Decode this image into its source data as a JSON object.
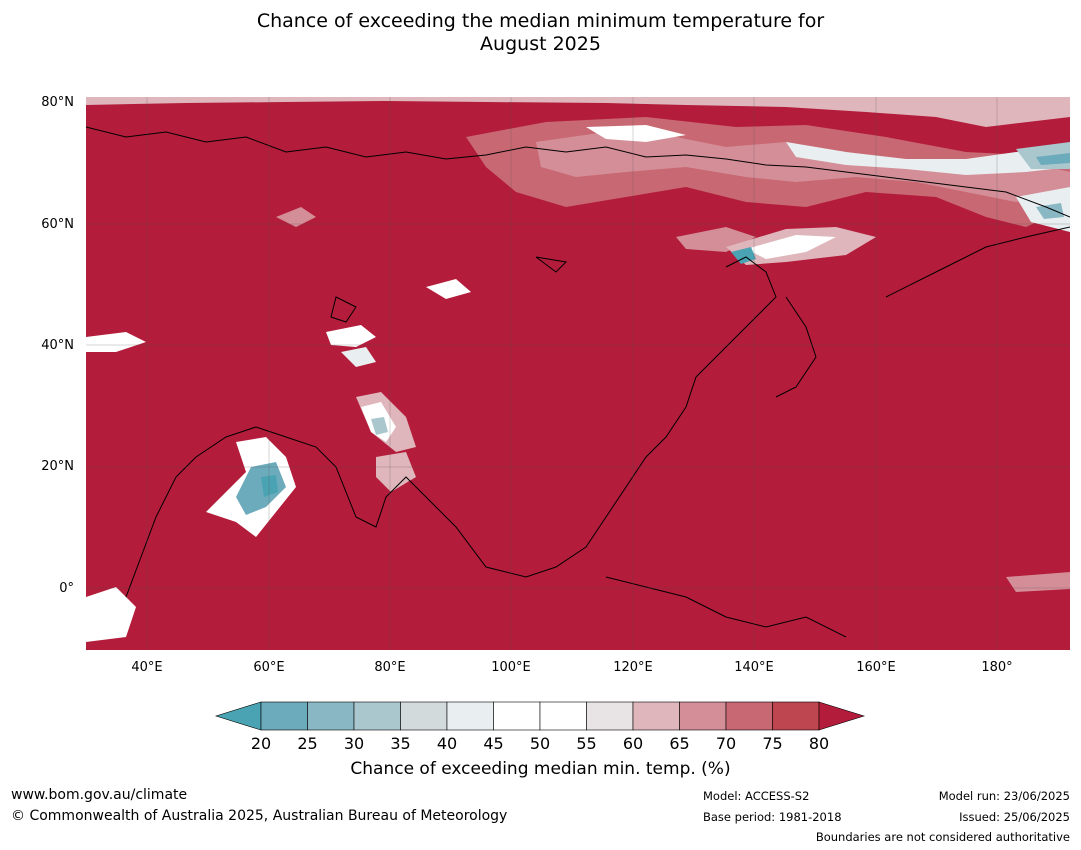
{
  "title_line1": "Chance of exceeding the median minimum temperature for",
  "title_line2": "August 2025",
  "map": {
    "lat_labels": [
      "80°N",
      "60°N",
      "40°N",
      "20°N",
      "0°"
    ],
    "lon_labels": [
      "40°E",
      "60°E",
      "80°E",
      "100°E",
      "120°E",
      "140°E",
      "160°E",
      "180°"
    ],
    "dominant_color": "#b31c3a"
  },
  "colorbar": {
    "ticks": [
      "20",
      "25",
      "30",
      "35",
      "40",
      "45",
      "50",
      "55",
      "60",
      "65",
      "70",
      "75",
      "80"
    ],
    "colors": [
      "#6cabbb",
      "#89b8c4",
      "#aac7ce",
      "#d3dadc",
      "#e9eff1",
      "#ffffff",
      "#ffffff",
      "#e8e3e5",
      "#dfb6bc",
      "#d48e98",
      "#c86872",
      "#bd4651"
    ],
    "low_color": "#4aa3b3",
    "high_color": "#b31c3a",
    "title": "Chance of exceeding median min. temp. (%)"
  },
  "footer": {
    "website": "www.bom.gov.au/climate",
    "copyright": "© Commonwealth of Australia 2025, Australian Bureau of Meteorology",
    "model": "Model: ACCESS-S2",
    "base_period": "Base period: 1981-2018",
    "model_run": "Model run: 23/06/2025",
    "issued": "Issued: 25/06/2025",
    "disclaimer": "Boundaries are not considered authoritative"
  }
}
